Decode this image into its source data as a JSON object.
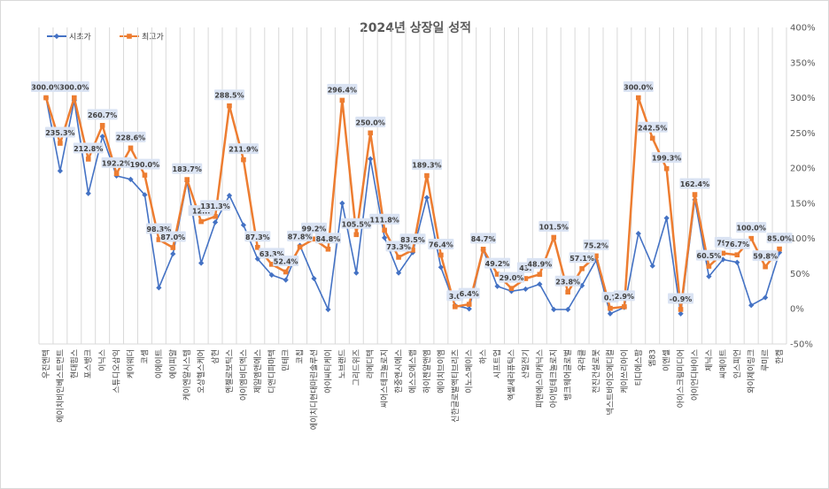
{
  "chart_data": {
    "type": "line",
    "title": "2024년 상장일 성적",
    "xlabel": "",
    "ylabel": "",
    "ylim": [
      -50,
      400
    ],
    "yticks": [
      -50,
      0,
      50,
      100,
      150,
      200,
      250,
      300,
      350,
      400
    ],
    "ytick_labels": [
      "-50%",
      "0%",
      "50%",
      "100%",
      "150%",
      "200%",
      "250%",
      "300%",
      "350%",
      "400%"
    ],
    "y_axis_side": "right",
    "grid": "vertical",
    "legend_position": "top-left",
    "categories": [
      "우진엔텍",
      "에이치비인베스트먼트",
      "현대힘스",
      "포스뱅크",
      "이닉스",
      "스튜디오삼익",
      "케이웨더",
      "코셈",
      "이에이트",
      "에이피알",
      "케이엔알시스템",
      "오상헬스케어",
      "삼현",
      "엔젤로보틱스",
      "아이엠비디엑스",
      "제일엠앤에스",
      "디앤디파마텍",
      "민테크",
      "코칩",
      "에이치디현대마린솔루션",
      "아이씨티케이",
      "노브랜드",
      "그리드위즈",
      "라메디텍",
      "씨어스테크놀로지",
      "한중엔시에스",
      "에스오에스랩",
      "하이젠알앤엠",
      "에이치브이엠",
      "신한글로벌액티브리츠",
      "이노스페이스",
      "하스",
      "시프트업",
      "엑셀세라퓨틱스",
      "산일전기",
      "피앤에스미캐닉스",
      "아이빔테크놀로지",
      "뱅크웨어글로벌",
      "유라클",
      "전진건설로봇",
      "넥스트바이오메디컬",
      "케이쓰리아이",
      "티디에스팜",
      "엠83",
      "이엔셀",
      "아이스크림미디어",
      "아이언디바이스",
      "제닉스",
      "씨메이트",
      "인스피언",
      "와이제이링크",
      "루미르",
      "한켐"
    ],
    "series": [
      {
        "name": "시초가",
        "color": "#4472c4",
        "values": [
          300,
          196,
          296,
          164,
          245,
          189,
          184,
          162,
          30,
          78,
          181,
          65,
          123,
          161,
          119,
          71,
          48,
          41,
          90,
          43,
          -1,
          150,
          51,
          213,
          101,
          51,
          80,
          158,
          59,
          5,
          0,
          84,
          32,
          25,
          28,
          35,
          -1,
          -1,
          33,
          69,
          -7,
          2,
          107,
          61,
          129,
          -7,
          155,
          46,
          70,
          66,
          5,
          16,
          80
        ]
      },
      {
        "name": "최고가",
        "color": "#ed7d31",
        "values": [
          300,
          235.3,
          300,
          212.8,
          260.7,
          192.2,
          228.6,
          190,
          98.3,
          87,
          183.7,
          124,
          131.3,
          288.5,
          211.9,
          87.3,
          63.3,
          52.4,
          87.8,
          99.2,
          84.8,
          296.4,
          105.5,
          250,
          111.8,
          73.3,
          83.5,
          189.3,
          76.4,
          3,
          6.4,
          84.7,
          49.2,
          29,
          43,
          48.9,
          101.5,
          23.8,
          57.1,
          75.2,
          0.7,
          2.9,
          300,
          242.5,
          199.3,
          -0.9,
          162.4,
          60.5,
          79,
          76.7,
          100,
          59.8,
          85
        ]
      }
    ],
    "data_labels": [
      {
        "index": 0,
        "text": "300.0%"
      },
      {
        "index": 1,
        "text": "235.3%"
      },
      {
        "index": 2,
        "text": "300.0%"
      },
      {
        "index": 3,
        "text": "212.8%"
      },
      {
        "index": 4,
        "text": "260.7%"
      },
      {
        "index": 5,
        "text": "192.2%"
      },
      {
        "index": 6,
        "text": "228.6%"
      },
      {
        "index": 7,
        "text": "190.0%"
      },
      {
        "index": 8,
        "text": "98.3%"
      },
      {
        "index": 9,
        "text": "87.0%"
      },
      {
        "index": 10,
        "text": "183.7%"
      },
      {
        "index": 11,
        "text": "12..."
      },
      {
        "index": 12,
        "text": "131.3%"
      },
      {
        "index": 13,
        "text": "288.5%"
      },
      {
        "index": 14,
        "text": "211.9%"
      },
      {
        "index": 15,
        "text": "87.3%"
      },
      {
        "index": 16,
        "text": "63.3%"
      },
      {
        "index": 17,
        "text": "52.4%"
      },
      {
        "index": 18,
        "text": "87.8%"
      },
      {
        "index": 19,
        "text": "99.2%"
      },
      {
        "index": 20,
        "text": "84.8%"
      },
      {
        "index": 21,
        "text": "296.4%"
      },
      {
        "index": 22,
        "text": "105.5%"
      },
      {
        "index": 23,
        "text": "250.0%"
      },
      {
        "index": 24,
        "text": "111.8%"
      },
      {
        "index": 25,
        "text": "73.3%"
      },
      {
        "index": 26,
        "text": "83.5%"
      },
      {
        "index": 27,
        "text": "189.3%"
      },
      {
        "index": 28,
        "text": "76.4%"
      },
      {
        "index": 29,
        "text": "3.0"
      },
      {
        "index": 30,
        "text": "6.4%"
      },
      {
        "index": 31,
        "text": "84.7%"
      },
      {
        "index": 32,
        "text": "49.2%"
      },
      {
        "index": 33,
        "text": "29.0%"
      },
      {
        "index": 34,
        "text": "43."
      },
      {
        "index": 35,
        "text": "48.9%"
      },
      {
        "index": 36,
        "text": "101.5%"
      },
      {
        "index": 37,
        "text": "23.8%"
      },
      {
        "index": 38,
        "text": "57.1%"
      },
      {
        "index": 39,
        "text": "75.2%"
      },
      {
        "index": 40,
        "text": "0.7"
      },
      {
        "index": 41,
        "text": "2.9%"
      },
      {
        "index": 42,
        "text": "300.0%"
      },
      {
        "index": 43,
        "text": "242.5%"
      },
      {
        "index": 44,
        "text": "199.3%"
      },
      {
        "index": 45,
        "text": "-0.9%"
      },
      {
        "index": 46,
        "text": "162.4%"
      },
      {
        "index": 47,
        "text": "60.5%"
      },
      {
        "index": 48,
        "text": "79."
      },
      {
        "index": 49,
        "text": "76.7%"
      },
      {
        "index": 50,
        "text": "100.0%"
      },
      {
        "index": 51,
        "text": "59.8%"
      },
      {
        "index": 52,
        "text": "85.0%"
      }
    ]
  }
}
